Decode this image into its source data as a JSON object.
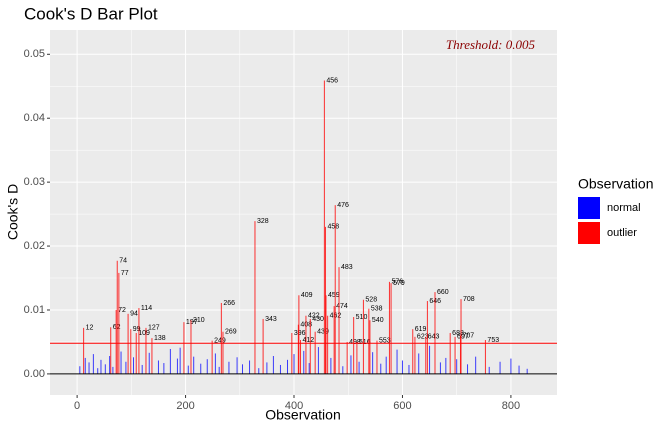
{
  "chart_data": {
    "type": "bar",
    "title": "Cook's D Bar Plot",
    "x_label": "Observation",
    "y_label": "Cook's D",
    "annotation": "Threshold: 0.005",
    "threshold": 0.0048,
    "legend_title": "Observation",
    "xlim": [
      -50,
      885
    ],
    "ylim": [
      -0.0033,
      0.0538
    ],
    "xticks": [
      0,
      200,
      400,
      600,
      800
    ],
    "yticks": [
      {
        "value": 0,
        "label": "0.00"
      },
      {
        "value": 0.01,
        "label": "0.01"
      },
      {
        "value": 0.02,
        "label": "0.02"
      },
      {
        "value": 0.03,
        "label": "0.03"
      },
      {
        "value": 0.04,
        "label": "0.04"
      },
      {
        "value": 0.05,
        "label": "0.05"
      }
    ],
    "grid": true,
    "series": [
      {
        "name": "normal",
        "color": "#0000ff",
        "x": [
          5,
          15,
          22,
          30,
          38,
          44,
          52,
          60,
          66,
          81,
          90,
          104,
          120,
          133,
          150,
          160,
          172,
          185,
          190,
          205,
          215,
          228,
          240,
          255,
          262,
          280,
          295,
          305,
          318,
          335,
          350,
          362,
          375,
          388,
          400,
          418,
          428,
          445,
          468,
          490,
          505,
          520,
          545,
          560,
          570,
          590,
          600,
          612,
          630,
          650,
          670,
          680,
          700,
          720,
          735,
          760,
          780,
          800,
          815,
          830
        ],
        "values": [
          0.0012,
          0.0025,
          0.0018,
          0.0031,
          0.0009,
          0.0022,
          0.0015,
          0.0028,
          0.0011,
          0.0035,
          0.0019,
          0.0026,
          0.0014,
          0.0033,
          0.0021,
          0.0017,
          0.0039,
          0.0024,
          0.0041,
          0.0013,
          0.0027,
          0.0016,
          0.0023,
          0.0032,
          0.0011,
          0.0019,
          0.0026,
          0.0015,
          0.0021,
          0.0009,
          0.0018,
          0.0028,
          0.0014,
          0.0022,
          0.0031,
          0.0036,
          0.0017,
          0.0042,
          0.0025,
          0.0012,
          0.0029,
          0.0019,
          0.0034,
          0.0016,
          0.0027,
          0.0038,
          0.0021,
          0.0014,
          0.0032,
          0.0044,
          0.0018,
          0.0025,
          0.0023,
          0.0015,
          0.0027,
          0.0011,
          0.0019,
          0.0024,
          0.0013,
          0.0008
        ]
      },
      {
        "name": "outlier",
        "color": "#ff0000",
        "x": [
          12,
          62,
          72,
          74,
          77,
          94,
          99,
          109,
          114,
          127,
          138,
          197,
          210,
          249,
          266,
          269,
          328,
          343,
          396,
          408,
          409,
          412,
          422,
          430,
          439,
          456,
          458,
          459,
          462,
          474,
          476,
          483,
          498,
          510,
          516,
          528,
          538,
          540,
          553,
          576,
          579,
          619,
          623,
          643,
          646,
          660,
          688,
          697,
          707,
          708,
          753
        ],
        "values": [
          0.0072,
          0.0073,
          0.01,
          0.0177,
          0.0158,
          0.0094,
          0.007,
          0.0064,
          0.0103,
          0.0072,
          0.0056,
          0.0081,
          0.0084,
          0.0052,
          0.0111,
          0.0066,
          0.0239,
          0.0086,
          0.0064,
          0.0077,
          0.0123,
          0.0053,
          0.0091,
          0.0086,
          0.0066,
          0.0459,
          0.023,
          0.0123,
          0.0091,
          0.0106,
          0.0264,
          0.0167,
          0.005,
          0.0089,
          0.005,
          0.0116,
          0.0102,
          0.0084,
          0.0052,
          0.0144,
          0.0142,
          0.007,
          0.0058,
          0.0058,
          0.0114,
          0.0128,
          0.0064,
          0.0058,
          0.006,
          0.0117,
          0.0053
        ]
      }
    ]
  }
}
